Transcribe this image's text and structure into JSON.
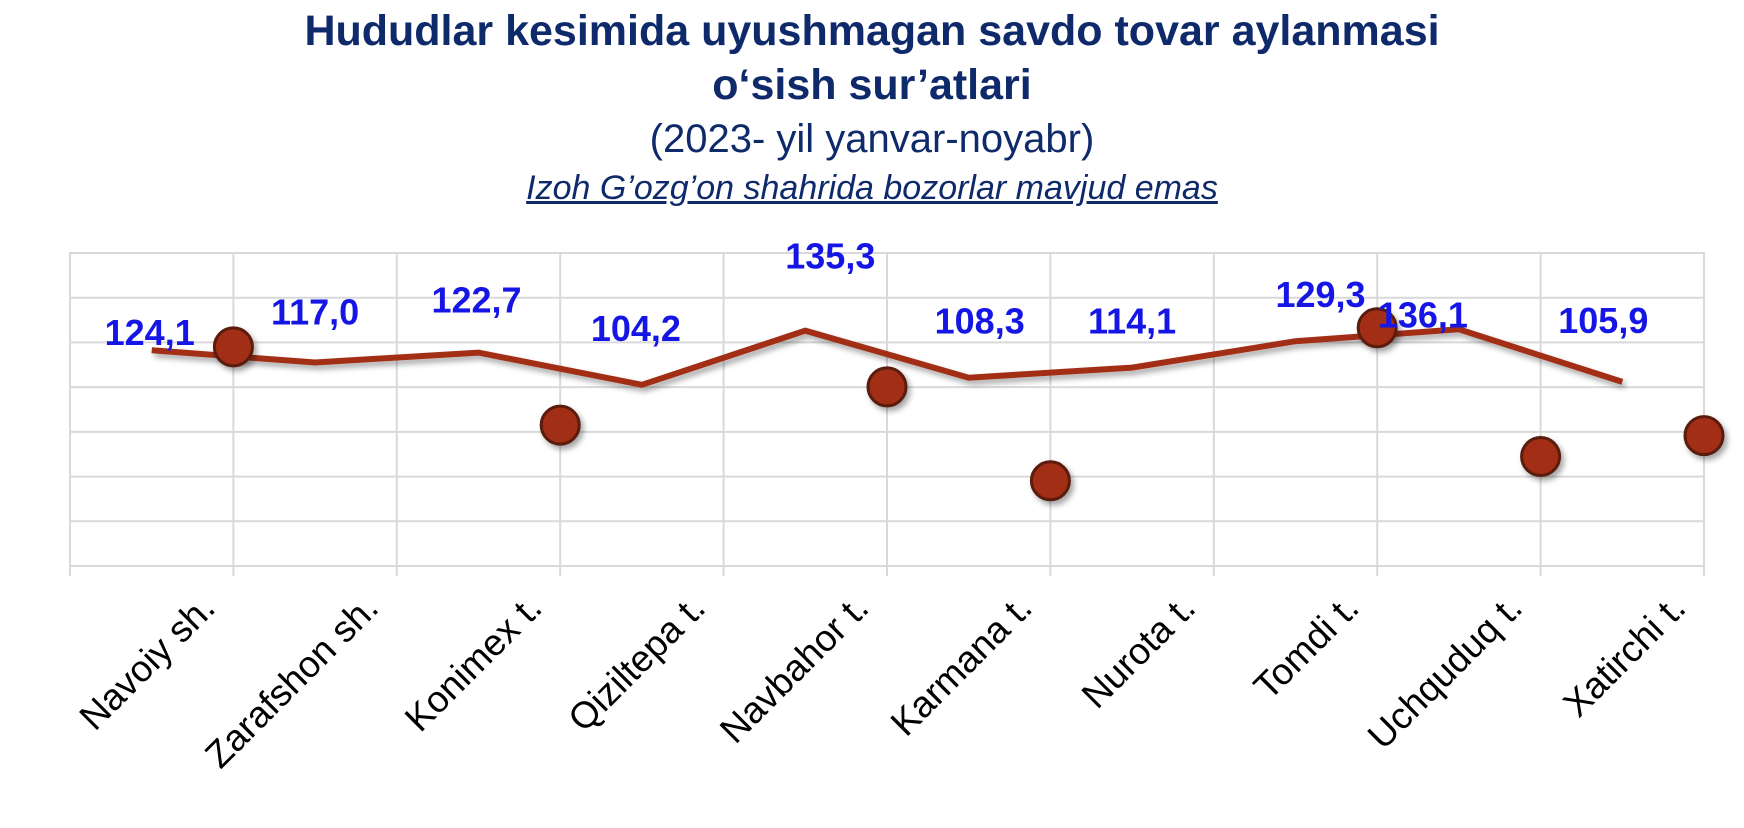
{
  "chart_data": {
    "type": "line",
    "title_lines": [
      "Hududlar kesimida uyushmagan savdo tovar aylanmasi",
      "o‘sish sur’atlari"
    ],
    "subtitle": "(2023- yil yanvar-noyabr)",
    "note": "Izoh G’ozg’on shahrida bozorlar mavjud emas",
    "categories": [
      "Navoiy sh.",
      "Zarafshon sh.",
      "Konimex t.",
      "Qiziltepa t.",
      "Navbahor t.",
      "Karmana t.",
      "Nurota t.",
      "Tomdi t.",
      "Uchquduq t.",
      "Xatirchi t."
    ],
    "series": [
      {
        "values": [
          124.1,
          117.0,
          122.7,
          104.2,
          135.3,
          108.3,
          114.1,
          129.3,
          136.1,
          105.9
        ]
      }
    ],
    "markers": [
      {
        "category": "Navoiy sh.",
        "y": 126
      },
      {
        "category": "Konimex t.",
        "y": 81
      },
      {
        "category": "Navbahor t.",
        "y": 103
      },
      {
        "category": "Karmana t.",
        "y": 49
      },
      {
        "category": "Tomdi t.",
        "y": 137
      },
      {
        "category": "Uchquduq t.",
        "y": 63
      },
      {
        "category": "Xatirchi t.",
        "y": 75
      }
    ],
    "data_labels": [
      "124,1",
      "117,0",
      "122,7",
      "104,2",
      "135,3",
      "108,3",
      "114,1",
      "129,3",
      "136,1",
      "105,9"
    ],
    "ylim": [
      0,
      180
    ],
    "grid": true,
    "legend": "none",
    "colors": {
      "line": "#a32f15",
      "marker": "#a32f15",
      "marker_edge": "#5a1a0b",
      "data_label": "#1515e6",
      "title": "#0f2a6b",
      "grid": "#d9d9d9"
    }
  }
}
